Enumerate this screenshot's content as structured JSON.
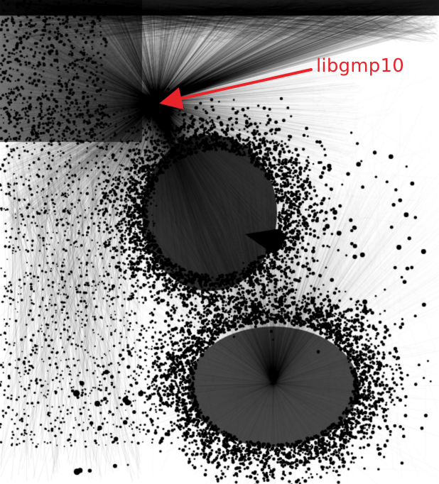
{
  "diagram": {
    "type": "network-graph",
    "background": "#ffffff",
    "node_color": "#000000",
    "edge_color": "#000000"
  },
  "annotation": {
    "label": "libgmp10",
    "color": "#e8232a"
  }
}
